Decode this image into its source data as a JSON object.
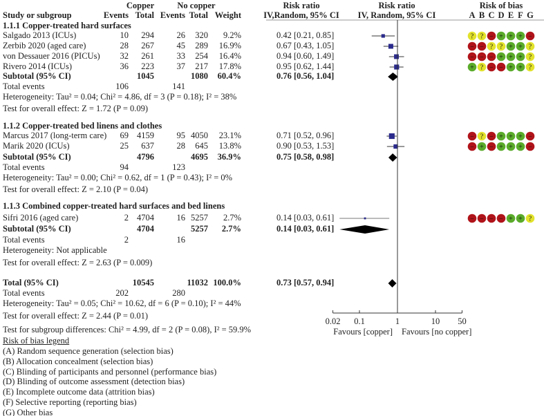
{
  "header": {
    "study_col": "Study or subgroup",
    "copper": "Copper",
    "no_copper": "No copper",
    "events": "Events",
    "total": "Total",
    "weight": "Weight",
    "rr_title": "Risk ratio",
    "rr_method": "IV,Random, 95% CI",
    "plot_title": "Risk ratio",
    "plot_method": "IV, Random, 95% CI",
    "rob_title": "Risk of bias",
    "rob_letters": [
      "A",
      "B",
      "C",
      "D",
      "E",
      "F",
      "G"
    ]
  },
  "colors": {
    "low": "#5aab2a",
    "unclear": "#e2e22c",
    "high": "#b0141a",
    "marker": "#2a2a8c"
  },
  "chart_data": {
    "type": "forest",
    "scale": "log",
    "xlim": [
      0.02,
      50
    ],
    "ticks": [
      0.02,
      0.1,
      1,
      10,
      50
    ],
    "tick_labels": [
      "0.02",
      "0.1",
      "1",
      "10",
      "50"
    ],
    "favours_left": "Favours [copper]",
    "favours_right": "Favours [no copper]",
    "subgroups": [
      {
        "title": "1.1.1 Copper-treated hard surfaces",
        "studies": [
          {
            "name": "Salgado 2013 (ICUs)",
            "ce": "10",
            "ct": "294",
            "ne": "26",
            "nt": "320",
            "weight": "9.2%",
            "rr": 0.42,
            "lo": 0.21,
            "hi": 0.85,
            "ci": "0.42 [0.21, 0.85]",
            "rob": [
              "?",
              "?",
              "-",
              "+",
              "+",
              "+",
              "-"
            ]
          },
          {
            "name": "Zerbib 2020 (aged care)",
            "ce": "28",
            "ct": "267",
            "ne": "45",
            "nt": "289",
            "weight": "16.9%",
            "rr": 0.67,
            "lo": 0.43,
            "hi": 1.05,
            "ci": "0.67 [0.43, 1.05]",
            "rob": [
              "-",
              "-",
              "?",
              "?",
              "+",
              "+",
              "?"
            ]
          },
          {
            "name": "von Dessauer 2016 (PICUs)",
            "ce": "32",
            "ct": "261",
            "ne": "33",
            "nt": "254",
            "weight": "16.4%",
            "rr": 0.94,
            "lo": 0.6,
            "hi": 1.49,
            "ci": "0.94 [0.60, 1.49]",
            "rob": [
              "-",
              "-",
              "-",
              "+",
              "+",
              "+",
              "?"
            ]
          },
          {
            "name": "Rivero 2014 (ICUs)",
            "ce": "36",
            "ct": "223",
            "ne": "37",
            "nt": "217",
            "weight": "17.8%",
            "rr": 0.95,
            "lo": 0.62,
            "hi": 1.44,
            "ci": "0.95 [0.62, 1.44]",
            "rob": [
              "+",
              "?",
              "-",
              "-",
              "+",
              "+",
              "?"
            ]
          }
        ],
        "subtotal": {
          "label": "Subtotal (95% CI)",
          "ct": "1045",
          "nt": "1080",
          "weight": "60.4%",
          "rr": 0.76,
          "lo": 0.56,
          "hi": 1.04,
          "ci": "0.76 [0.56, 1.04]"
        },
        "total_events": {
          "label": "Total events",
          "ce": "106",
          "ne": "141"
        },
        "heterogeneity": "Heterogeneity: Tau² = 0.04; Chi² = 4.86, df = 3 (P = 0.18); I² = 38%",
        "overall": "Test for overall effect: Z = 1.72 (P = 0.09)"
      },
      {
        "title": "1.1.2 Copper-treated bed linens and clothes",
        "studies": [
          {
            "name": "Marcus 2017 (long-term care)",
            "ce": "69",
            "ct": "4159",
            "ne": "95",
            "nt": "4050",
            "weight": "23.1%",
            "rr": 0.71,
            "lo": 0.52,
            "hi": 0.96,
            "ci": "0.71 [0.52, 0.96]",
            "rob": [
              "-",
              "?",
              "-",
              "+",
              "+",
              "+",
              "-"
            ]
          },
          {
            "name": "Marik 2020 (ICUs)",
            "ce": "25",
            "ct": "637",
            "ne": "28",
            "nt": "645",
            "weight": "13.8%",
            "rr": 0.9,
            "lo": 0.53,
            "hi": 1.53,
            "ci": "0.90 [0.53, 1.53]",
            "rob": [
              "-",
              "+",
              "-",
              "+",
              "+",
              "+",
              "-"
            ]
          }
        ],
        "subtotal": {
          "label": "Subtotal (95% CI)",
          "ct": "4796",
          "nt": "4695",
          "weight": "36.9%",
          "rr": 0.75,
          "lo": 0.58,
          "hi": 0.98,
          "ci": "0.75 [0.58, 0.98]"
        },
        "total_events": {
          "label": "Total events",
          "ce": "94",
          "ne": "123"
        },
        "heterogeneity": "Heterogeneity: Tau² = 0.00; Chi² = 0.62, df = 1 (P = 0.43); I² = 0%",
        "overall": "Test for overall effect: Z = 2.10 (P = 0.04)"
      },
      {
        "title": "1.1.3 Combined copper-treated hard surfaces and bed linens",
        "studies": [
          {
            "name": "Sifri 2016 (aged care)",
            "ce": "2",
            "ct": "4704",
            "ne": "16",
            "nt": "5257",
            "weight": "2.7%",
            "rr": 0.14,
            "lo": 0.03,
            "hi": 0.61,
            "ci": "0.14 [0.03, 0.61]",
            "rob": [
              "-",
              "-",
              "-",
              "-",
              "+",
              "+",
              "?"
            ]
          }
        ],
        "subtotal": {
          "label": "Subtotal (95% CI)",
          "ct": "4704",
          "nt": "5257",
          "weight": "2.7%",
          "rr": 0.14,
          "lo": 0.03,
          "hi": 0.61,
          "ci": "0.14 [0.03, 0.61]"
        },
        "total_events": {
          "label": "Total events",
          "ce": "2",
          "ne": "16"
        },
        "heterogeneity": "Heterogeneity: Not applicable",
        "overall": "Test for overall effect: Z = 2.63 (P = 0.009)"
      }
    ],
    "total": {
      "label": "Total (95% CI)",
      "ct": "10545",
      "nt": "11032",
      "weight": "100.0%",
      "rr": 0.73,
      "lo": 0.57,
      "hi": 0.94,
      "ci": "0.73 [0.57, 0.94]"
    },
    "total_events": {
      "label": "Total events",
      "ce": "202",
      "ne": "280"
    },
    "heterogeneity": "Heterogeneity: Tau² = 0.05; Chi² = 10.62, df = 6 (P = 0.10); I² = 44%",
    "overall": "Test for overall effect: Z = 2.44 (P = 0.01)",
    "subgroup_diff": "Test for subgroup differences: Chi² = 4.99, df = 2 (P = 0.08), I² = 59.9%"
  },
  "legend": {
    "title": "Risk of bias legend",
    "items": [
      "(A) Random sequence generation (selection bias)",
      "(B) Allocation concealment (selection bias)",
      "(C) Blinding of participants and personnel (performance bias)",
      "(D) Blinding of outcome assessment (detection bias)",
      "(E) Incomplete outcome data (attrition bias)",
      "(F) Selective reporting (reporting bias)",
      "(G) Other bias"
    ]
  }
}
